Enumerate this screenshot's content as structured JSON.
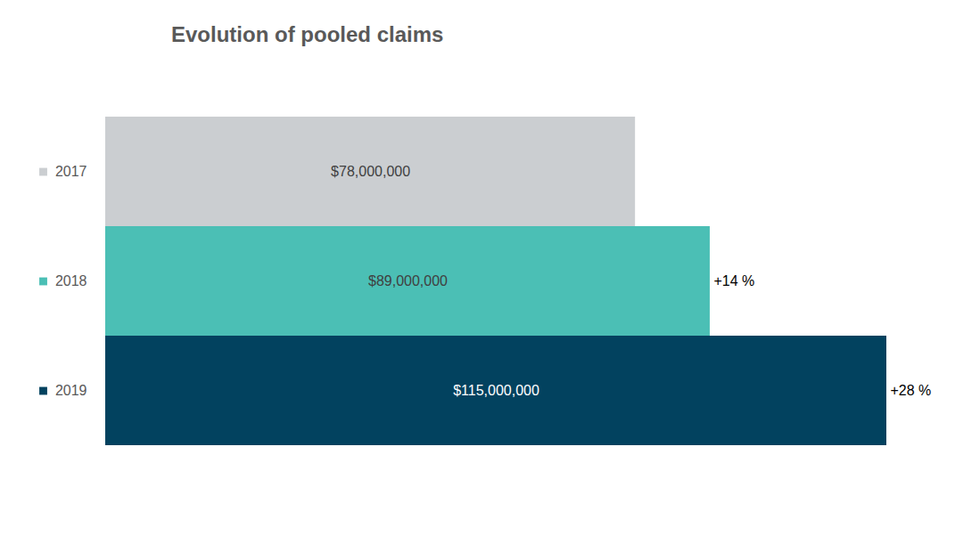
{
  "chart_data": {
    "type": "bar",
    "orientation": "horizontal",
    "title": "Evolution of pooled claims",
    "categories": [
      "2017",
      "2018",
      "2019"
    ],
    "values": [
      78000000,
      89000000,
      115000000
    ],
    "value_labels": [
      "$78,000,000",
      "$89,000,000",
      "$115,000,000"
    ],
    "data_labels": true,
    "colors": [
      "#cbced1",
      "#4bbfb5",
      "#02425f"
    ],
    "xlim": [
      0,
      115000000
    ],
    "tick_labels": false,
    "grid": false,
    "annotations": [
      {
        "category": "2018",
        "text": "+14 %"
      },
      {
        "category": "2019",
        "text": "+28 %"
      }
    ]
  }
}
